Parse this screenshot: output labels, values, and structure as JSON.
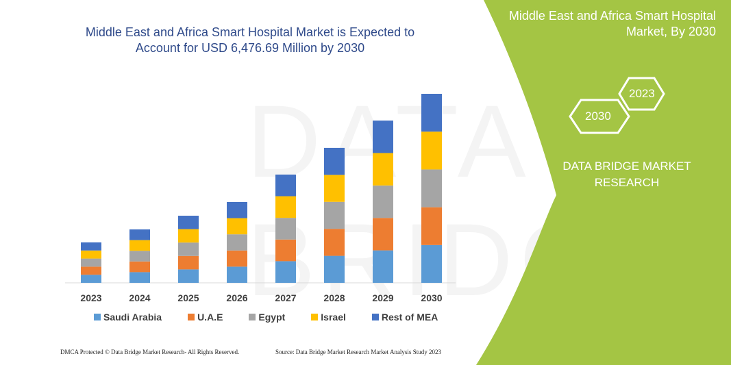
{
  "title_line1": "Middle East and Africa Smart Hospital Market is Expected to",
  "title_line2": "Account for USD 6,476.69 Million by 2030",
  "panel": {
    "title_line1": "Middle East and Africa Smart Hospital",
    "title_line2": "Market, By 2030",
    "hex_left": "2030",
    "hex_right": "2023",
    "brand_line1": "DATA BRIDGE MARKET",
    "brand_line2": "RESEARCH",
    "color": "#a4c544"
  },
  "watermark": "DATA BRIDGE",
  "footer": {
    "left": "DMCA Protected © Data Bridge Market Research- All Rights Reserved.",
    "right": "Source: Data Bridge Market Research Market Analysis Study 2023"
  },
  "chart_data": {
    "type": "stacked-bar",
    "title": "Middle East and Africa Smart Hospital Market is Expected to Account for USD 6,476.69 Million by 2030",
    "categories": [
      "2023",
      "2024",
      "2025",
      "2026",
      "2027",
      "2028",
      "2029",
      "2030"
    ],
    "series": [
      {
        "name": "Saudi Arabia",
        "color": "#5b9bd5",
        "values": [
          277,
          366,
          460,
          554,
          742,
          925,
          1112,
          1295
        ]
      },
      {
        "name": "U.A.E",
        "color": "#ed7d31",
        "values": [
          277,
          366,
          460,
          554,
          742,
          925,
          1112,
          1295
        ]
      },
      {
        "name": "Egypt",
        "color": "#a5a5a5",
        "values": [
          277,
          366,
          460,
          554,
          742,
          925,
          1112,
          1295
        ]
      },
      {
        "name": "Israel",
        "color": "#ffc000",
        "values": [
          277,
          366,
          460,
          554,
          742,
          925,
          1112,
          1296
        ]
      },
      {
        "name": "Rest of MEA",
        "color": "#4472c4",
        "values": [
          277,
          366,
          460,
          554,
          742,
          925,
          1112,
          1296
        ]
      }
    ],
    "ylim": [
      0,
      6477
    ],
    "grid": false,
    "legend": "bottom"
  }
}
